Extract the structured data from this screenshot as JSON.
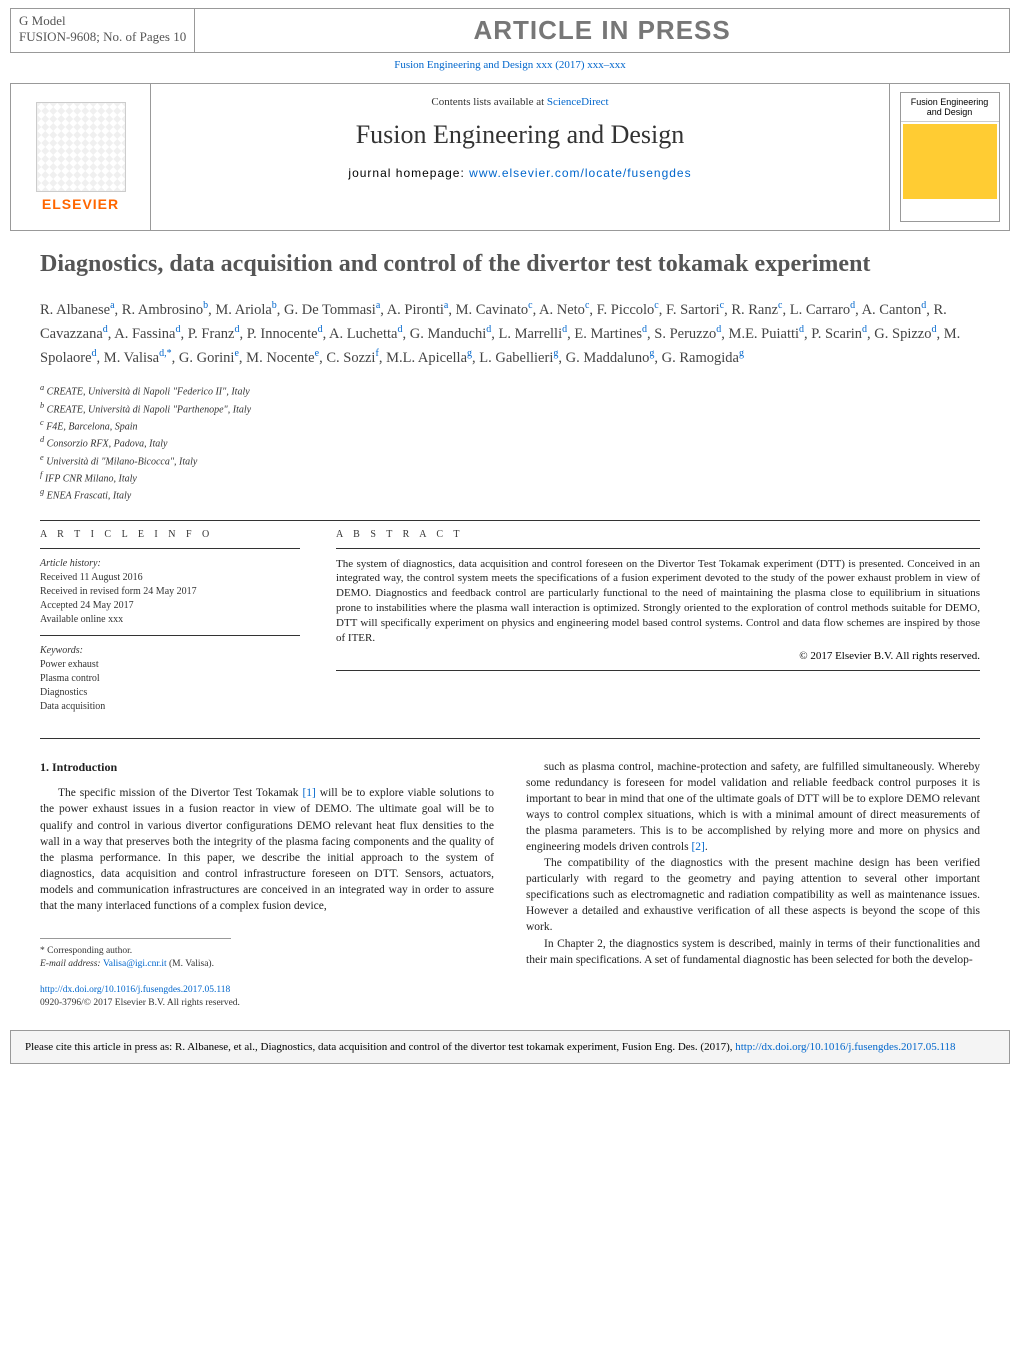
{
  "header": {
    "model_label": "G Model",
    "model_code": "FUSION-9608;   No. of Pages 10",
    "press_banner": "ARTICLE IN PRESS",
    "journal_link": "Fusion Engineering and Design xxx (2017) xxx–xxx"
  },
  "journal_box": {
    "elsevier": "ELSEVIER",
    "contents_prefix": "Contents lists available at ",
    "contents_link": "ScienceDirect",
    "title": "Fusion Engineering and Design",
    "homepage_label": "journal homepage: ",
    "homepage_url": "www.elsevier.com/locate/fusengdes",
    "cover_title": "Fusion Engineering and Design"
  },
  "article": {
    "title": "Diagnostics, data acquisition and control of the divertor test tokamak experiment",
    "authors_html": "R. Albanese<sup>a</sup>, R. Ambrosino<sup>b</sup>, M. Ariola<sup>b</sup>, G. De Tommasi<sup>a</sup>, A. Pironti<sup>a</sup>, M. Cavinato<sup>c</sup>, A. Neto<sup>c</sup>, F. Piccolo<sup>c</sup>, F. Sartori<sup>c</sup>, R. Ranz<sup>c</sup>, L. Carraro<sup>d</sup>, A. Canton<sup>d</sup>, R. Cavazzana<sup>d</sup>, A. Fassina<sup>d</sup>, P. Franz<sup>d</sup>, P. Innocente<sup>d</sup>, A. Luchetta<sup>d</sup>, G. Manduchi<sup>d</sup>, L. Marrelli<sup>d</sup>, E. Martines<sup>d</sup>, S. Peruzzo<sup>d</sup>, M.E. Puiatti<sup>d</sup>, P. Scarin<sup>d</sup>, G. Spizzo<sup>d</sup>, M. Spolaore<sup>d</sup>, M. Valisa<sup>d,*</sup>, G. Gorini<sup>e</sup>, M. Nocente<sup>e</sup>, C. Sozzi<sup>f</sup>, M.L. Apicella<sup>g</sup>, L. Gabellieri<sup>g</sup>, G. Maddaluno<sup>g</sup>, G. Ramogida<sup>g</sup>",
    "affiliations": [
      "a CREATE, Università di Napoli \"Federico II\", Italy",
      "b CREATE, Università di Napoli \"Parthenope\", Italy",
      "c F4E, Barcelona, Spain",
      "d Consorzio RFX, Padova, Italy",
      "e Università di \"Milano-Bicocca\", Italy",
      "f IFP CNR Milano, Italy",
      "g ENEA Frascati, Italy"
    ]
  },
  "info": {
    "label": "A R T I C L E    I N F O",
    "history_heading": "Article history:",
    "history": [
      "Received 11 August 2016",
      "Received in revised form 24 May 2017",
      "Accepted 24 May 2017",
      "Available online xxx"
    ],
    "keywords_heading": "Keywords:",
    "keywords": [
      "Power exhaust",
      "Plasma control",
      "Diagnostics",
      "Data acquisition"
    ]
  },
  "abstract": {
    "label": "A B S T R A C T",
    "text": "The system of diagnostics, data acquisition and control foreseen on the Divertor Test Tokamak experiment (DTT) is presented. Conceived in an integrated way, the control system meets the specifications of a fusion experiment devoted to the study of the power exhaust problem in view of DEMO. Diagnostics and feedback control are particularly functional to the need of maintaining the plasma close to equilibrium in situations prone to instabilities where the plasma wall interaction is optimized. Strongly oriented to the exploration of control methods suitable for DEMO, DTT will specifically experiment on physics and engineering model based control systems. Control and data flow schemes are inspired by those of ITER.",
    "copyright": "© 2017 Elsevier B.V. All rights reserved."
  },
  "body": {
    "intro_heading": "1.  Introduction",
    "col1_p1": "The specific mission of the Divertor Test Tokamak [1] will be to explore viable solutions to the power exhaust issues in a fusion reactor in view of DEMO. The ultimate goal will be to qualify and control in various divertor configurations DEMO relevant heat flux densities to the wall in a way that preserves both the integrity of the plasma facing components and the quality of the plasma performance. In this paper, we describe the initial approach to the system of diagnostics, data acquisition and control infrastructure foreseen on DTT. Sensors, actuators, models and communication infrastructures are conceived in an integrated way in order to assure that the many interlaced functions of a complex fusion device,",
    "col2_p1": "such as plasma control, machine-protection and safety, are fulfilled simultaneously. Whereby some redundancy is foreseen for model validation and reliable feedback control purposes it is important to bear in mind that one of the ultimate goals of DTT will be to explore DEMO relevant ways to control complex situations, which is with a minimal amount of direct measurements of the plasma parameters. This is to be accomplished by relying more and more on physics and engineering models driven controls [2].",
    "col2_p2": "The compatibility of the diagnostics with the present machine design has been verified particularly with regard to the geometry and paying attention to several other important specifications such as electromagnetic and radiation compatibility as well as maintenance issues. However a detailed and exhaustive verification of all these aspects is beyond the scope of this work.",
    "col2_p3": "In Chapter 2, the diagnostics system is described, mainly in terms of their functionalities and their main specifications. A set of fundamental diagnostic has been selected for both the develop-"
  },
  "footer": {
    "corresponding": "* Corresponding author.",
    "email_label": "E-mail address: ",
    "email": "Valisa@igi.cnr.it",
    "email_name": " (M. Valisa).",
    "doi": "http://dx.doi.org/10.1016/j.fusengdes.2017.05.118",
    "issn_copyright": "0920-3796/© 2017 Elsevier B.V. All rights reserved."
  },
  "cite_box": {
    "text_prefix": "Please cite this article in press as: R. Albanese, et al., Diagnostics, data acquisition and control of the divertor test tokamak experiment, Fusion Eng. Des. (2017), ",
    "url": "http://dx.doi.org/10.1016/j.fusengdes.2017.05.118"
  },
  "colors": {
    "link": "#0066cc",
    "elsevier_orange": "#ff6600",
    "banner_gray": "#777777",
    "cover_yellow": "#ffcc33"
  }
}
